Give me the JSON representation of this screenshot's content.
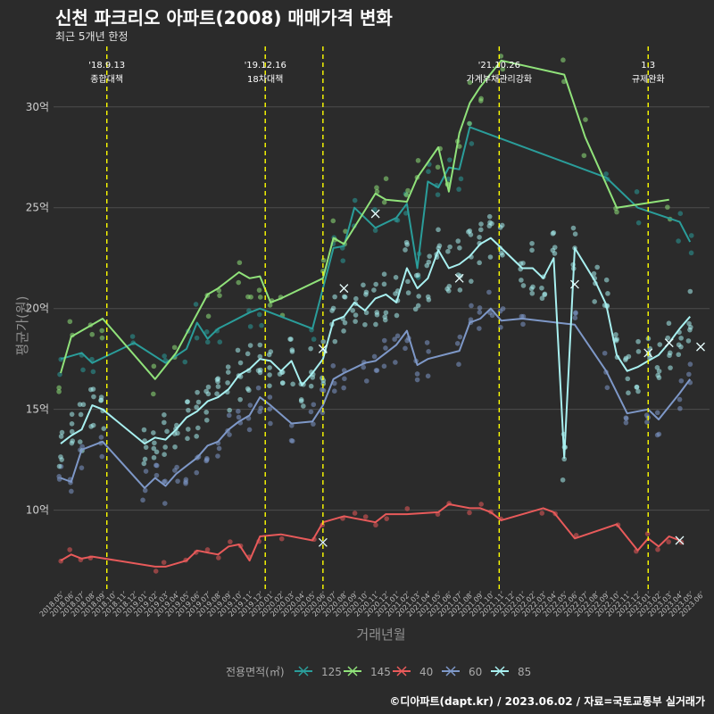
{
  "header": {
    "title": "신천 파크리오 아파트(2008) 매매가격 변화",
    "subtitle": "최근 5개년 한정"
  },
  "footer": {
    "credit": "©디아파트(dapt.kr) / 2023.06.02 / 자료=국토교통부 실거래가"
  },
  "colors": {
    "background": "#2b2b2b",
    "grid": "#4d4d4d",
    "annotation": "#ffff00",
    "125": "#2a9d9a",
    "145": "#90e27a",
    "40": "#e85a5a",
    "60": "#7e98c8",
    "85": "#a8f0f0"
  },
  "chart_data": {
    "type": "line",
    "ylabel": "평균가(원)",
    "xlabel": "거래년월",
    "ylim": [
      6,
      33
    ],
    "yticks": [
      10,
      15,
      20,
      25,
      30
    ],
    "ytick_labels": [
      "10억",
      "15억",
      "20억",
      "25억",
      "30억"
    ],
    "x_month_range": [
      "2018-05",
      "2023-06"
    ],
    "xtick_labels": [
      "2018.05",
      "2018.06",
      "2018.07",
      "2018.08",
      "2018.09",
      "2018.10",
      "2018.11",
      "2018.12",
      "2019.01",
      "2019.02",
      "2019.03",
      "2019.04",
      "2019.05",
      "2019.06",
      "2019.07",
      "2019.08",
      "2019.09",
      "2019.10",
      "2019.11",
      "2019.12",
      "2020.01",
      "2020.02",
      "2020.03",
      "2020.04",
      "2020.05",
      "2020.06",
      "2020.07",
      "2020.08",
      "2020.09",
      "2020.10",
      "2020.11",
      "2020.12",
      "2021.01",
      "2021.02",
      "2021.03",
      "2021.04",
      "2021.05",
      "2021.06",
      "2021.07",
      "2021.08",
      "2021.09",
      "2021.10",
      "2021.11",
      "2021.12",
      "2022.01",
      "2022.02",
      "2022.03",
      "2022.04",
      "2022.05",
      "2022.06",
      "2022.07",
      "2022.08",
      "2022.09",
      "2022.10",
      "2022.11",
      "2022.12",
      "2023.01",
      "2023.02",
      "2023.03",
      "2023.04",
      "2023.05",
      "2023.06"
    ],
    "annotations": [
      {
        "month": "2018-09.4",
        "date": "'18.9.13",
        "label": "종합대책"
      },
      {
        "month": "2019-12.5",
        "date": "'19.12.16",
        "label": "18차대책"
      },
      {
        "month": "2020-06",
        "date": "",
        "label": ""
      },
      {
        "month": "2021-10.8",
        "date": "'21.10.26",
        "label": "가계부채관리강화"
      },
      {
        "month": "2023-01",
        "date": "1.3",
        "label": "규제완화"
      }
    ],
    "legend": {
      "title": "전용면적(㎡)",
      "entries": [
        "125",
        "145",
        "40",
        "60",
        "85"
      ]
    },
    "series": [
      {
        "name": "125",
        "points": [
          [
            "2018-05",
            17.5
          ],
          [
            "2018-07",
            17.8
          ],
          [
            "2018-08",
            17.3
          ],
          [
            "2018-12",
            18.3
          ],
          [
            "2019-03",
            17.3
          ],
          [
            "2019-05",
            18.0
          ],
          [
            "2019-06",
            19.3
          ],
          [
            "2019-07",
            18.5
          ],
          [
            "2019-08",
            19.0
          ],
          [
            "2019-11",
            19.8
          ],
          [
            "2019-12",
            20.0
          ],
          [
            "2020-05",
            19.0
          ],
          [
            "2020-07",
            23.0
          ],
          [
            "2020-08",
            23.1
          ],
          [
            "2020-09",
            25.0
          ],
          [
            "2020-11",
            24.0
          ],
          [
            "2021-01",
            24.5
          ],
          [
            "2021-02",
            25.2
          ],
          [
            "2021-03",
            22.0
          ],
          [
            "2021-04",
            26.3
          ],
          [
            "2021-05",
            26.0
          ],
          [
            "2021-06",
            27.0
          ],
          [
            "2021-07",
            26.9
          ],
          [
            "2021-08",
            29.0
          ],
          [
            "2022-09",
            26.5
          ],
          [
            "2022-12",
            25.0
          ],
          [
            "2023-04",
            24.3
          ],
          [
            "2023-05",
            23.3
          ]
        ]
      },
      {
        "name": "145",
        "points": [
          [
            "2018-05",
            16.8
          ],
          [
            "2018-06",
            18.6
          ],
          [
            "2018-08",
            19.2
          ],
          [
            "2018-09",
            19.5
          ],
          [
            "2019-02",
            16.5
          ],
          [
            "2019-04",
            17.8
          ],
          [
            "2019-07",
            20.7
          ],
          [
            "2019-08",
            21.0
          ],
          [
            "2019-10",
            21.8
          ],
          [
            "2019-11",
            21.5
          ],
          [
            "2019-12",
            21.6
          ],
          [
            "2020-01",
            20.3
          ],
          [
            "2020-02",
            20.5
          ],
          [
            "2020-06",
            21.5
          ],
          [
            "2020-07",
            23.5
          ],
          [
            "2020-08",
            23.2
          ],
          [
            "2020-11",
            25.7
          ],
          [
            "2020-12",
            25.4
          ],
          [
            "2021-02",
            25.3
          ],
          [
            "2021-03",
            26.5
          ],
          [
            "2021-05",
            28.0
          ],
          [
            "2021-06",
            25.8
          ],
          [
            "2021-07",
            28.7
          ],
          [
            "2021-08",
            30.2
          ],
          [
            "2021-09",
            31.0
          ],
          [
            "2021-11",
            32.3
          ],
          [
            "2022-05",
            31.6
          ],
          [
            "2022-07",
            28.5
          ],
          [
            "2022-10",
            25.0
          ],
          [
            "2023-03",
            25.4
          ]
        ]
      },
      {
        "name": "40",
        "points": [
          [
            "2018-05",
            7.5
          ],
          [
            "2018-06",
            7.8
          ],
          [
            "2018-07",
            7.6
          ],
          [
            "2018-08",
            7.7
          ],
          [
            "2019-02",
            7.2
          ],
          [
            "2019-03",
            7.2
          ],
          [
            "2019-05",
            7.5
          ],
          [
            "2019-06",
            8.0
          ],
          [
            "2019-07",
            7.9
          ],
          [
            "2019-08",
            7.8
          ],
          [
            "2019-09",
            8.2
          ],
          [
            "2019-10",
            8.3
          ],
          [
            "2019-11",
            7.5
          ],
          [
            "2019-12",
            8.7
          ],
          [
            "2020-02",
            8.8
          ],
          [
            "2020-05",
            8.5
          ],
          [
            "2020-06",
            9.4
          ],
          [
            "2020-08",
            9.7
          ],
          [
            "2020-09",
            9.6
          ],
          [
            "2020-10",
            9.5
          ],
          [
            "2020-11",
            9.4
          ],
          [
            "2020-12",
            9.8
          ],
          [
            "2021-02",
            9.8
          ],
          [
            "2021-05",
            9.9
          ],
          [
            "2021-06",
            10.3
          ],
          [
            "2021-08",
            10.1
          ],
          [
            "2021-09",
            10.1
          ],
          [
            "2021-10",
            9.9
          ],
          [
            "2021-11",
            9.5
          ],
          [
            "2022-03",
            10.1
          ],
          [
            "2022-04",
            9.9
          ],
          [
            "2022-06",
            8.6
          ],
          [
            "2022-10",
            9.3
          ],
          [
            "2022-12",
            8.0
          ],
          [
            "2023-01",
            8.6
          ],
          [
            "2023-02",
            8.2
          ],
          [
            "2023-03",
            8.7
          ],
          [
            "2023-04",
            8.5
          ]
        ]
      },
      {
        "name": "60",
        "points": [
          [
            "2018-05",
            11.6
          ],
          [
            "2018-06",
            11.4
          ],
          [
            "2018-07",
            13.0
          ],
          [
            "2018-09",
            13.4
          ],
          [
            "2019-01",
            11.1
          ],
          [
            "2019-02",
            11.6
          ],
          [
            "2019-03",
            11.2
          ],
          [
            "2019-04",
            11.8
          ],
          [
            "2019-05",
            12.2
          ],
          [
            "2019-06",
            12.6
          ],
          [
            "2019-07",
            13.2
          ],
          [
            "2019-08",
            13.4
          ],
          [
            "2019-09",
            14.0
          ],
          [
            "2019-10",
            14.4
          ],
          [
            "2019-11",
            14.7
          ],
          [
            "2019-12",
            15.6
          ],
          [
            "2020-01",
            15.2
          ],
          [
            "2020-03",
            14.3
          ],
          [
            "2020-05",
            14.4
          ],
          [
            "2020-06",
            15.2
          ],
          [
            "2020-07",
            16.5
          ],
          [
            "2020-08",
            16.8
          ],
          [
            "2020-10",
            17.3
          ],
          [
            "2020-11",
            17.4
          ],
          [
            "2020-12",
            17.8
          ],
          [
            "2021-01",
            18.2
          ],
          [
            "2021-02",
            18.9
          ],
          [
            "2021-03",
            17.2
          ],
          [
            "2021-04",
            17.5
          ],
          [
            "2021-07",
            17.9
          ],
          [
            "2021-08",
            19.3
          ],
          [
            "2021-09",
            19.5
          ],
          [
            "2021-10",
            20.0
          ],
          [
            "2021-11",
            19.4
          ],
          [
            "2022-01",
            19.5
          ],
          [
            "2022-06",
            19.2
          ],
          [
            "2022-09",
            16.9
          ],
          [
            "2022-11",
            14.8
          ],
          [
            "2023-01",
            15.0
          ],
          [
            "2023-02",
            14.5
          ],
          [
            "2023-04",
            15.8
          ],
          [
            "2023-05",
            16.5
          ]
        ]
      },
      {
        "name": "85",
        "points": [
          [
            "2018-05",
            13.3
          ],
          [
            "2018-06",
            13.7
          ],
          [
            "2018-07",
            14.0
          ],
          [
            "2018-08",
            15.2
          ],
          [
            "2018-09",
            15.0
          ],
          [
            "2019-01",
            13.3
          ],
          [
            "2019-02",
            13.6
          ],
          [
            "2019-03",
            13.5
          ],
          [
            "2019-04",
            14.0
          ],
          [
            "2019-05",
            14.6
          ],
          [
            "2019-06",
            14.9
          ],
          [
            "2019-07",
            15.4
          ],
          [
            "2019-08",
            15.6
          ],
          [
            "2019-09",
            16.0
          ],
          [
            "2019-10",
            16.7
          ],
          [
            "2019-11",
            17.0
          ],
          [
            "2019-12",
            17.5
          ],
          [
            "2020-01",
            17.4
          ],
          [
            "2020-02",
            16.9
          ],
          [
            "2020-03",
            17.4
          ],
          [
            "2020-04",
            16.2
          ],
          [
            "2020-05",
            16.8
          ],
          [
            "2020-06",
            17.5
          ],
          [
            "2020-07",
            19.4
          ],
          [
            "2020-08",
            19.6
          ],
          [
            "2020-09",
            20.3
          ],
          [
            "2020-10",
            19.9
          ],
          [
            "2020-11",
            20.5
          ],
          [
            "2020-12",
            20.7
          ],
          [
            "2021-01",
            20.3
          ],
          [
            "2021-02",
            22.0
          ],
          [
            "2021-03",
            21.0
          ],
          [
            "2021-04",
            21.5
          ],
          [
            "2021-05",
            22.9
          ],
          [
            "2021-06",
            22.0
          ],
          [
            "2021-07",
            22.2
          ],
          [
            "2021-08",
            22.6
          ],
          [
            "2021-09",
            23.2
          ],
          [
            "2021-10",
            23.5
          ],
          [
            "2021-11",
            23.0
          ],
          [
            "2022-01",
            22.0
          ],
          [
            "2022-02",
            22.0
          ],
          [
            "2022-03",
            21.5
          ],
          [
            "2022-04",
            22.5
          ],
          [
            "2022-05",
            12.6
          ],
          [
            "2022-06",
            23.0
          ],
          [
            "2022-08",
            21.3
          ],
          [
            "2022-09",
            20.2
          ],
          [
            "2022-10",
            17.7
          ],
          [
            "2022-11",
            16.9
          ],
          [
            "2022-12",
            17.1
          ],
          [
            "2023-01",
            17.4
          ],
          [
            "2023-02",
            17.7
          ],
          [
            "2023-03",
            18.3
          ],
          [
            "2023-04",
            19.0
          ],
          [
            "2023-05",
            19.6
          ]
        ]
      }
    ]
  }
}
